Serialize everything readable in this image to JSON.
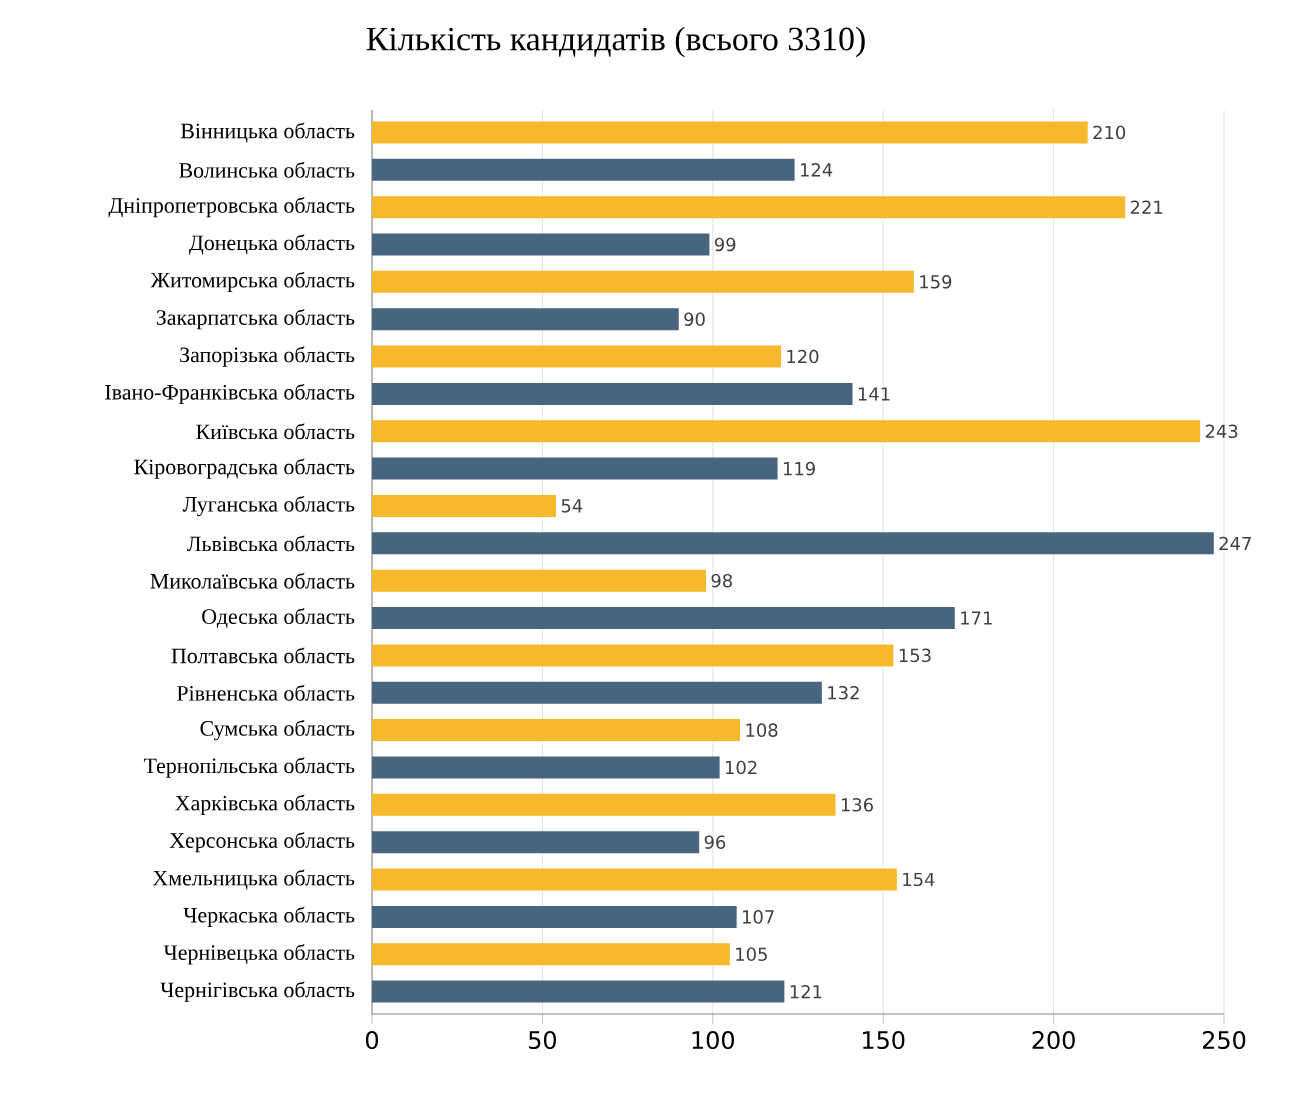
{
  "chart_data": {
    "type": "bar",
    "orientation": "horizontal",
    "title": "Кількість кандидатів (всього 3310)",
    "categories": [
      "Вінницька область",
      "Волинська область",
      "Дніпропетровська область",
      "Донецька область",
      "Житомирська область",
      "Закарпатська область",
      "Запорізька область",
      "Івано-Франківська область",
      "Київська область",
      "Кіровоградська область",
      "Луганська область",
      "Львівська область",
      "Миколаївська область",
      "Одеська область",
      "Полтавська область",
      "Рівненська область",
      "Сумська область",
      "Тернопільська область",
      "Харківська область",
      "Херсонська область",
      "Хмельницька область",
      "Черкаська область",
      "Чернівецька область",
      "Чернігівська область"
    ],
    "values": [
      210,
      124,
      221,
      99,
      159,
      90,
      120,
      141,
      243,
      119,
      54,
      247,
      98,
      171,
      153,
      132,
      108,
      102,
      136,
      96,
      154,
      107,
      105,
      121
    ],
    "colors": [
      "#f6b92b",
      "#48657f",
      "#f6b92b",
      "#48657f",
      "#f6b92b",
      "#48657f",
      "#f6b92b",
      "#48657f",
      "#f6b92b",
      "#48657f",
      "#f6b92b",
      "#48657f",
      "#f6b92b",
      "#48657f",
      "#f6b92b",
      "#48657f",
      "#f6b92b",
      "#48657f",
      "#f6b92b",
      "#48657f",
      "#f6b92b",
      "#48657f",
      "#f6b92b",
      "#48657f"
    ],
    "xlim": [
      0,
      250
    ],
    "xticks": [
      0,
      50,
      100,
      150,
      200,
      250
    ],
    "grid": "x",
    "data_labels": true
  }
}
